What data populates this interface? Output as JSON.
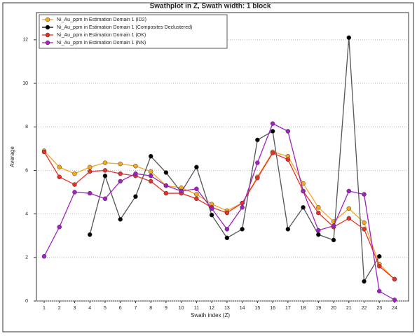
{
  "chart_data": {
    "type": "line",
    "title": "Swathplot in Z, Swath width: 1 block",
    "x_label": "Swath index (Z)",
    "y_label": "Average",
    "categories": [
      "1",
      "2",
      "3",
      "4",
      "5",
      "6",
      "7",
      "8",
      "9",
      "10",
      "11",
      "12",
      "13",
      "14",
      "15",
      "16",
      "17",
      "18",
      "19",
      "20",
      "21",
      "22",
      "23",
      "24"
    ],
    "ylim": [
      0,
      13.25
    ],
    "yticks": [
      0,
      2,
      4,
      6,
      8,
      10,
      12
    ],
    "grid": true,
    "legend": "top-left",
    "series": [
      {
        "name": "Ni_Au_ppm in Estimation Domain 1 (ID2)",
        "color": "#f5a623",
        "values": [
          6.9,
          6.15,
          5.85,
          6.15,
          6.35,
          6.3,
          6.2,
          5.95,
          5.3,
          5.2,
          4.9,
          4.45,
          4.15,
          4.5,
          5.7,
          6.85,
          6.65,
          5.4,
          4.3,
          3.65,
          4.25,
          3.6,
          1.7,
          1.0
        ]
      },
      {
        "name": "Ni_Au_ppm in Estimation Domain 1 (Composites Declustered)",
        "color": "#000000",
        "values": [
          null,
          null,
          null,
          3.05,
          5.75,
          3.75,
          4.8,
          6.65,
          5.9,
          5.0,
          6.15,
          3.95,
          2.9,
          3.3,
          7.4,
          7.8,
          3.3,
          4.3,
          3.05,
          2.8,
          12.1,
          0.9,
          2.05,
          null
        ]
      },
      {
        "name": "Ni_Au_ppm in Estimation Domain 1 (OK)",
        "color": "#e8302a",
        "values": [
          6.85,
          5.7,
          5.35,
          5.95,
          6.0,
          5.85,
          5.75,
          5.5,
          4.95,
          4.95,
          4.7,
          4.3,
          4.05,
          4.5,
          5.65,
          6.8,
          6.5,
          5.05,
          4.05,
          3.4,
          3.8,
          3.3,
          1.6,
          1.0
        ]
      },
      {
        "name": "Ni_Au_ppm in Estimation Domain 1 (NN)",
        "color": "#a020c0",
        "values": [
          2.05,
          3.4,
          5.0,
          4.95,
          4.7,
          5.5,
          5.85,
          5.75,
          5.3,
          5.05,
          5.15,
          4.25,
          3.3,
          4.3,
          6.35,
          8.15,
          7.8,
          5.05,
          3.25,
          3.45,
          5.05,
          4.9,
          0.45,
          0.05
        ]
      }
    ]
  }
}
